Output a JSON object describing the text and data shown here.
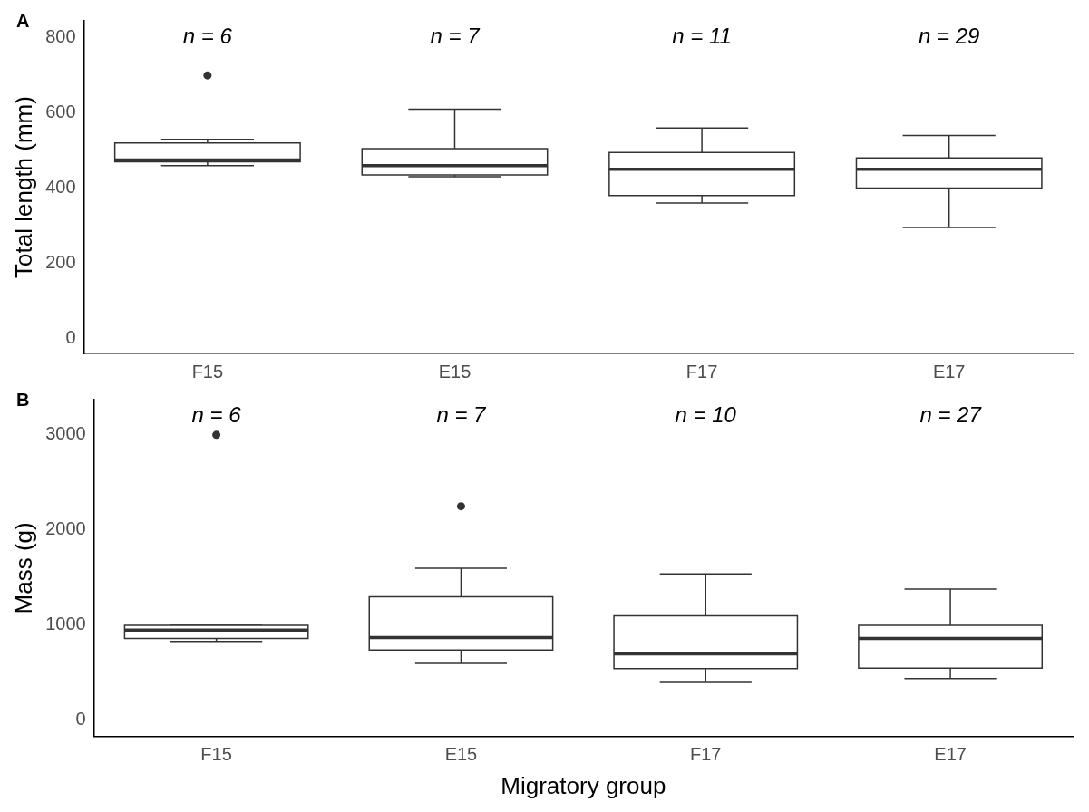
{
  "chart_data": [
    {
      "type": "box",
      "title": "A",
      "ylabel": "Total length (mm)",
      "categories": [
        "F15",
        "E15",
        "F17",
        "E17"
      ],
      "ylim": [
        -40,
        845
      ],
      "yticks": [
        0,
        200,
        400,
        600,
        800
      ],
      "grid": false,
      "legend": false,
      "boxes": [
        {
          "low": 460,
          "q1": 470,
          "median": 475,
          "q3": 520,
          "high": 530,
          "outliers": [
            700
          ]
        },
        {
          "low": 430,
          "q1": 435,
          "median": 460,
          "q3": 505,
          "high": 610
        },
        {
          "low": 360,
          "q1": 380,
          "median": 450,
          "q3": 495,
          "high": 560
        },
        {
          "low": 295,
          "q1": 400,
          "median": 450,
          "q3": 480,
          "high": 540
        }
      ],
      "annotations": [
        "n = 6",
        "n = 7",
        "n = 11",
        "n = 29"
      ]
    },
    {
      "type": "box",
      "title": "B",
      "ylabel": "Mass (g)",
      "xlabel": "Migratory group",
      "categories": [
        "F15",
        "E15",
        "F17",
        "E17"
      ],
      "ylim": [
        -170,
        3370
      ],
      "yticks": [
        0,
        1000,
        2000,
        3000
      ],
      "grid": false,
      "legend": false,
      "boxes": [
        {
          "low": 830,
          "q1": 860,
          "median": 950,
          "q3": 1000,
          "high": 1000,
          "outliers": [
            3000
          ]
        },
        {
          "low": 600,
          "q1": 740,
          "median": 870,
          "q3": 1300,
          "high": 1600,
          "outliers": [
            2250
          ]
        },
        {
          "low": 400,
          "q1": 545,
          "median": 700,
          "q3": 1100,
          "high": 1540
        },
        {
          "low": 440,
          "q1": 550,
          "median": 860,
          "q3": 1000,
          "high": 1380
        }
      ],
      "annotations": [
        "n = 6",
        "n = 7",
        "n = 10",
        "n = 27"
      ]
    }
  ]
}
